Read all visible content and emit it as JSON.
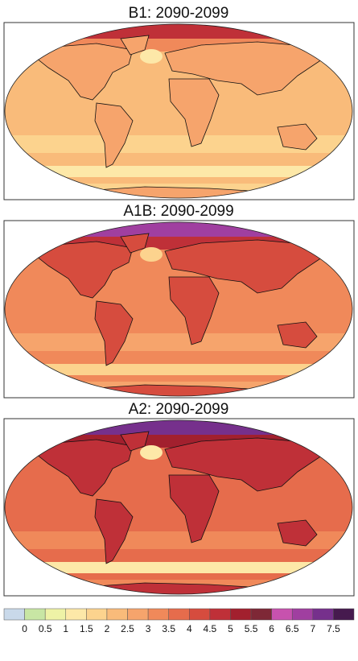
{
  "panels": [
    {
      "title": "B1: 2090-2099"
    },
    {
      "title": "A1B: 2090-2099"
    },
    {
      "title": "A2: 2090-2099"
    }
  ],
  "legend": {
    "colors": [
      "#c9d9ea",
      "#c8e6a4",
      "#eef2a6",
      "#fde8a8",
      "#fcd38e",
      "#f9bb7a",
      "#f6a46c",
      "#f0895a",
      "#e66c4c",
      "#d64c3e",
      "#bf3038",
      "#a2202e",
      "#7e2836",
      "#c752ae",
      "#a03fa0",
      "#76308c",
      "#461a4e"
    ],
    "labels": [
      "0",
      "0.5",
      "1",
      "1.5",
      "2",
      "2.5",
      "3",
      "3.5",
      "4",
      "4.5",
      "5",
      "5.5",
      "6",
      "6.5",
      "7",
      "7.5"
    ]
  }
}
